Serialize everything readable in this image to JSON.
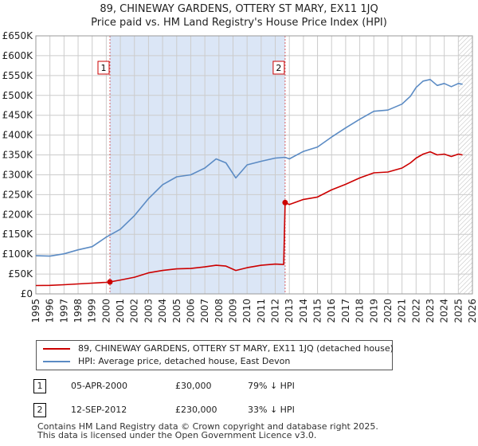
{
  "titles": {
    "line1": "89, CHINEWAY GARDENS, OTTERY ST MARY, EX11 1JQ",
    "line2": "Price paid vs. HM Land Registry's House Price Index (HPI)"
  },
  "chart_data": {
    "type": "line",
    "title": "89, CHINEWAY GARDENS, OTTERY ST MARY, EX11 1JQ — Price paid vs. HM Land Registry's House Price Index (HPI)",
    "xlim": [
      1995,
      2026
    ],
    "ylim": [
      0,
      650000
    ],
    "y_ticks": [
      0,
      50000,
      100000,
      150000,
      200000,
      250000,
      300000,
      350000,
      400000,
      450000,
      500000,
      550000,
      600000,
      650000
    ],
    "y_tick_labels": [
      "£0",
      "£50K",
      "£100K",
      "£150K",
      "£200K",
      "£250K",
      "£300K",
      "£350K",
      "£400K",
      "£450K",
      "£500K",
      "£550K",
      "£600K",
      "£650K"
    ],
    "x_ticks": [
      1995,
      1996,
      1997,
      1998,
      1999,
      2000,
      2001,
      2002,
      2003,
      2004,
      2005,
      2006,
      2007,
      2008,
      2009,
      2010,
      2011,
      2012,
      2013,
      2014,
      2015,
      2016,
      2017,
      2018,
      2019,
      2020,
      2021,
      2022,
      2023,
      2024,
      2025,
      2026
    ],
    "shaded_region": [
      2000.26,
      2012.7
    ],
    "hatched_from": 2025.0,
    "grid": true,
    "colors": {
      "property": "#cc0000",
      "hpi": "#5b8bc4",
      "shade": "#dbe6f6",
      "grid": "#cccccc",
      "marker_box": "#cc0000"
    },
    "series": [
      {
        "name": "89, CHINEWAY GARDENS, OTTERY ST MARY, EX11 1JQ (detached house)",
        "color": "#cc0000",
        "x": [
          1995.0,
          1996.0,
          1997.0,
          1998.0,
          1999.0,
          2000.0,
          2000.26,
          2001.0,
          2002.0,
          2003.0,
          2004.0,
          2005.0,
          2006.0,
          2007.0,
          2007.8,
          2008.5,
          2009.2,
          2010.0,
          2011.0,
          2012.0,
          2012.6,
          2012.7,
          2013.0,
          2014.0,
          2015.0,
          2016.0,
          2017.0,
          2018.0,
          2019.0,
          2020.0,
          2021.0,
          2021.6,
          2022.0,
          2022.5,
          2023.0,
          2023.5,
          2024.0,
          2024.5,
          2025.0,
          2025.3
        ],
        "values": [
          21000,
          21500,
          23000,
          25000,
          27000,
          29000,
          30000,
          35000,
          42000,
          53000,
          59000,
          63000,
          64000,
          68000,
          72000,
          70000,
          59000,
          66000,
          72000,
          75000,
          74000,
          230000,
          225000,
          238000,
          244000,
          262000,
          276000,
          292000,
          305000,
          307000,
          317000,
          330000,
          342000,
          352000,
          358000,
          350000,
          352000,
          346000,
          352000,
          350000
        ]
      },
      {
        "name": "HPI: Average price, detached house, East Devon",
        "color": "#5b8bc4",
        "x": [
          1995.0,
          1996.0,
          1997.0,
          1998.0,
          1999.0,
          2000.0,
          2001.0,
          2002.0,
          2003.0,
          2004.0,
          2005.0,
          2006.0,
          2007.0,
          2007.8,
          2008.5,
          2009.2,
          2010.0,
          2011.0,
          2012.0,
          2012.7,
          2013.0,
          2014.0,
          2015.0,
          2016.0,
          2017.0,
          2018.0,
          2019.0,
          2020.0,
          2021.0,
          2021.6,
          2022.0,
          2022.5,
          2023.0,
          2023.5,
          2024.0,
          2024.5,
          2025.0,
          2025.3
        ],
        "values": [
          96000,
          95000,
          101000,
          111000,
          119000,
          143000,
          163000,
          197000,
          240000,
          275000,
          295000,
          300000,
          317000,
          340000,
          330000,
          292000,
          325000,
          334000,
          342000,
          344000,
          340000,
          359000,
          370000,
          395000,
          418000,
          440000,
          460000,
          463000,
          478000,
          498000,
          520000,
          536000,
          540000,
          525000,
          530000,
          522000,
          530000,
          528000
        ]
      }
    ],
    "sales": [
      {
        "id": "1",
        "x": 2000.26,
        "y": 30000
      },
      {
        "id": "2",
        "x": 2012.7,
        "y": 230000
      }
    ]
  },
  "legend": {
    "items": [
      {
        "label": "89, CHINEWAY GARDENS, OTTERY ST MARY, EX11 1JQ (detached house)",
        "color": "#cc0000"
      },
      {
        "label": "HPI: Average price, detached house, East Devon",
        "color": "#5b8bc4"
      }
    ]
  },
  "sales_table": [
    {
      "id": "1",
      "date": "05-APR-2000",
      "price": "£30,000",
      "hpi": "79% ↓ HPI"
    },
    {
      "id": "2",
      "date": "12-SEP-2012",
      "price": "£230,000",
      "hpi": "33% ↓ HPI"
    }
  ],
  "footer": {
    "line1": "Contains HM Land Registry data © Crown copyright and database right 2025.",
    "line2": "This data is licensed under the Open Government Licence v3.0."
  }
}
